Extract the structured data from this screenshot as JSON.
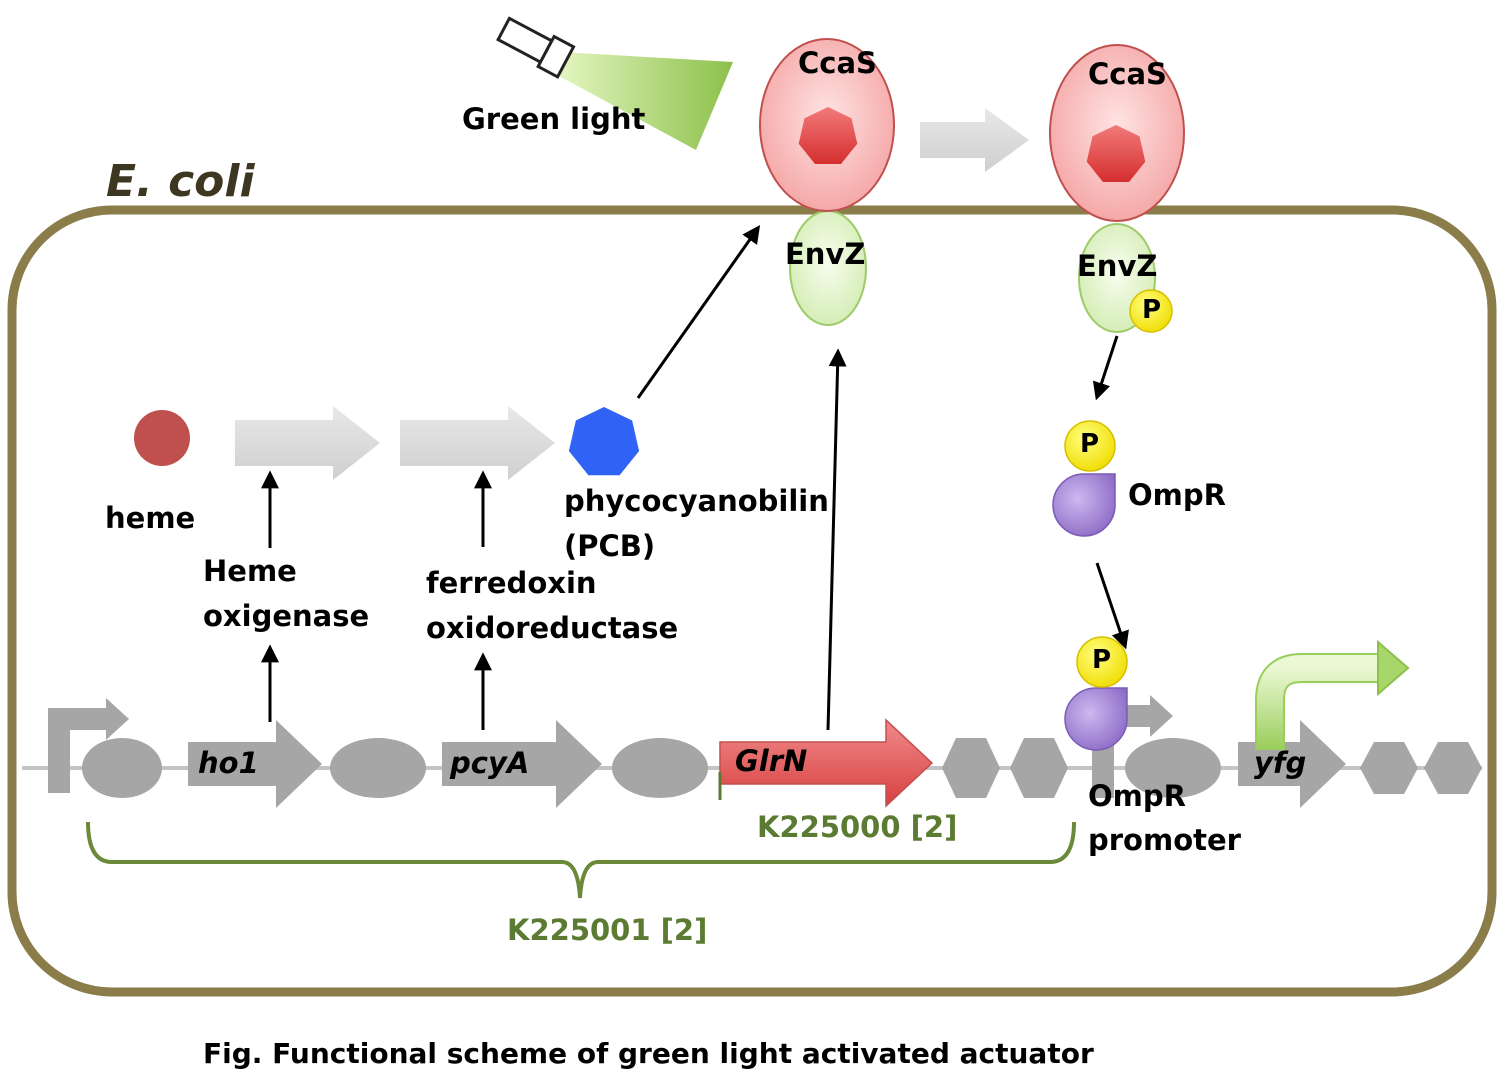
{
  "cell": {
    "label": "E. coli"
  },
  "light": {
    "label": "Green light"
  },
  "receptor": {
    "ccas": "CcaS",
    "envz": "EnvZ",
    "ccas_2": "CcaS",
    "envz_2": "EnvZ"
  },
  "pathway": {
    "heme": "heme",
    "enzyme_1_line1": "Heme",
    "enzyme_1_line2": "oxigenase",
    "enzyme_2_line1": "ferredoxin",
    "enzyme_2_line2": "oxidoreductase",
    "pcb_line1": "phycocyanobilin",
    "pcb_line2": "(PCB)"
  },
  "regulator": {
    "name": "OmpR",
    "phosphate": "P"
  },
  "dna": {
    "gene_1": "ho1",
    "gene_2": "pcyA",
    "gene_3": "GlrN",
    "gene_4": "yfg",
    "promoter_line1": "OmpR",
    "promoter_line2": "promoter"
  },
  "parts": {
    "part_1": "K225000 [2]",
    "part_2": "K225001 [2]"
  },
  "caption": "Fig. Functional scheme of green light activated actuator",
  "colors": {
    "membrane": "#8a7d4a",
    "ccas_fill": "#f6b8b8",
    "envz_fill": "#dff2c4",
    "chromophore": "#e54b4b",
    "heme": "#c0504d",
    "pcb": "#2f62f5",
    "phosphate": "#ffee00",
    "ompr": "#a58ad6",
    "glrn": "#e05a5a",
    "dna_grey": "#a6a6a6",
    "label_green": "#5b7a32"
  }
}
